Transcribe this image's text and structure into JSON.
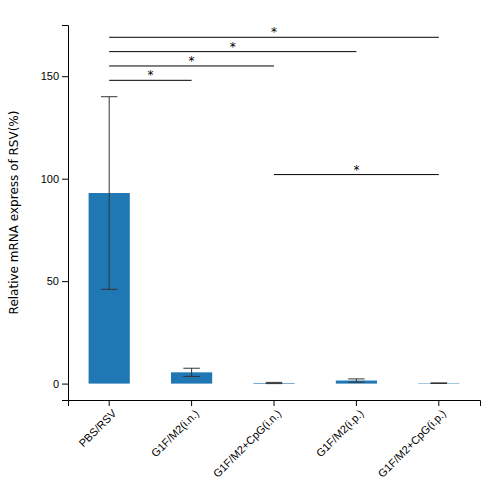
{
  "chart_data": {
    "type": "bar",
    "categories": [
      "PBS/RSV",
      "G1F/M2(i.n.)",
      "G1F/M2+CpG(i.n.)",
      "G1F/M2(i.p.)",
      "G1F/M2+CpG(i.p.)"
    ],
    "values": [
      93.0,
      5.5,
      0.3,
      1.5,
      0.2
    ],
    "errors": [
      47.0,
      2.0,
      0.3,
      0.8,
      0.15
    ],
    "ylabel": "Relative mRNA express of RSV(%)",
    "ylim": [
      -8,
      175
    ],
    "yticks": [
      0,
      50,
      100,
      150
    ],
    "grid": false,
    "annotations": [
      {
        "x1": "PBS/RSV",
        "x2": "G1F/M2(i.n.)",
        "y": 148,
        "text": "*"
      },
      {
        "x1": "PBS/RSV",
        "x2": "G1F/M2+CpG(i.n.)",
        "y": 155,
        "text": "*"
      },
      {
        "x1": "PBS/RSV",
        "x2": "G1F/M2(i.p.)",
        "y": 162,
        "text": "*"
      },
      {
        "x1": "PBS/RSV",
        "x2": "G1F/M2+CpG(i.p.)",
        "y": 169,
        "text": "*"
      },
      {
        "x1": "G1F/M2+CpG(i.n.)",
        "x2": "G1F/M2+CpG(i.p.)",
        "y": 102,
        "text": "*"
      }
    ]
  }
}
